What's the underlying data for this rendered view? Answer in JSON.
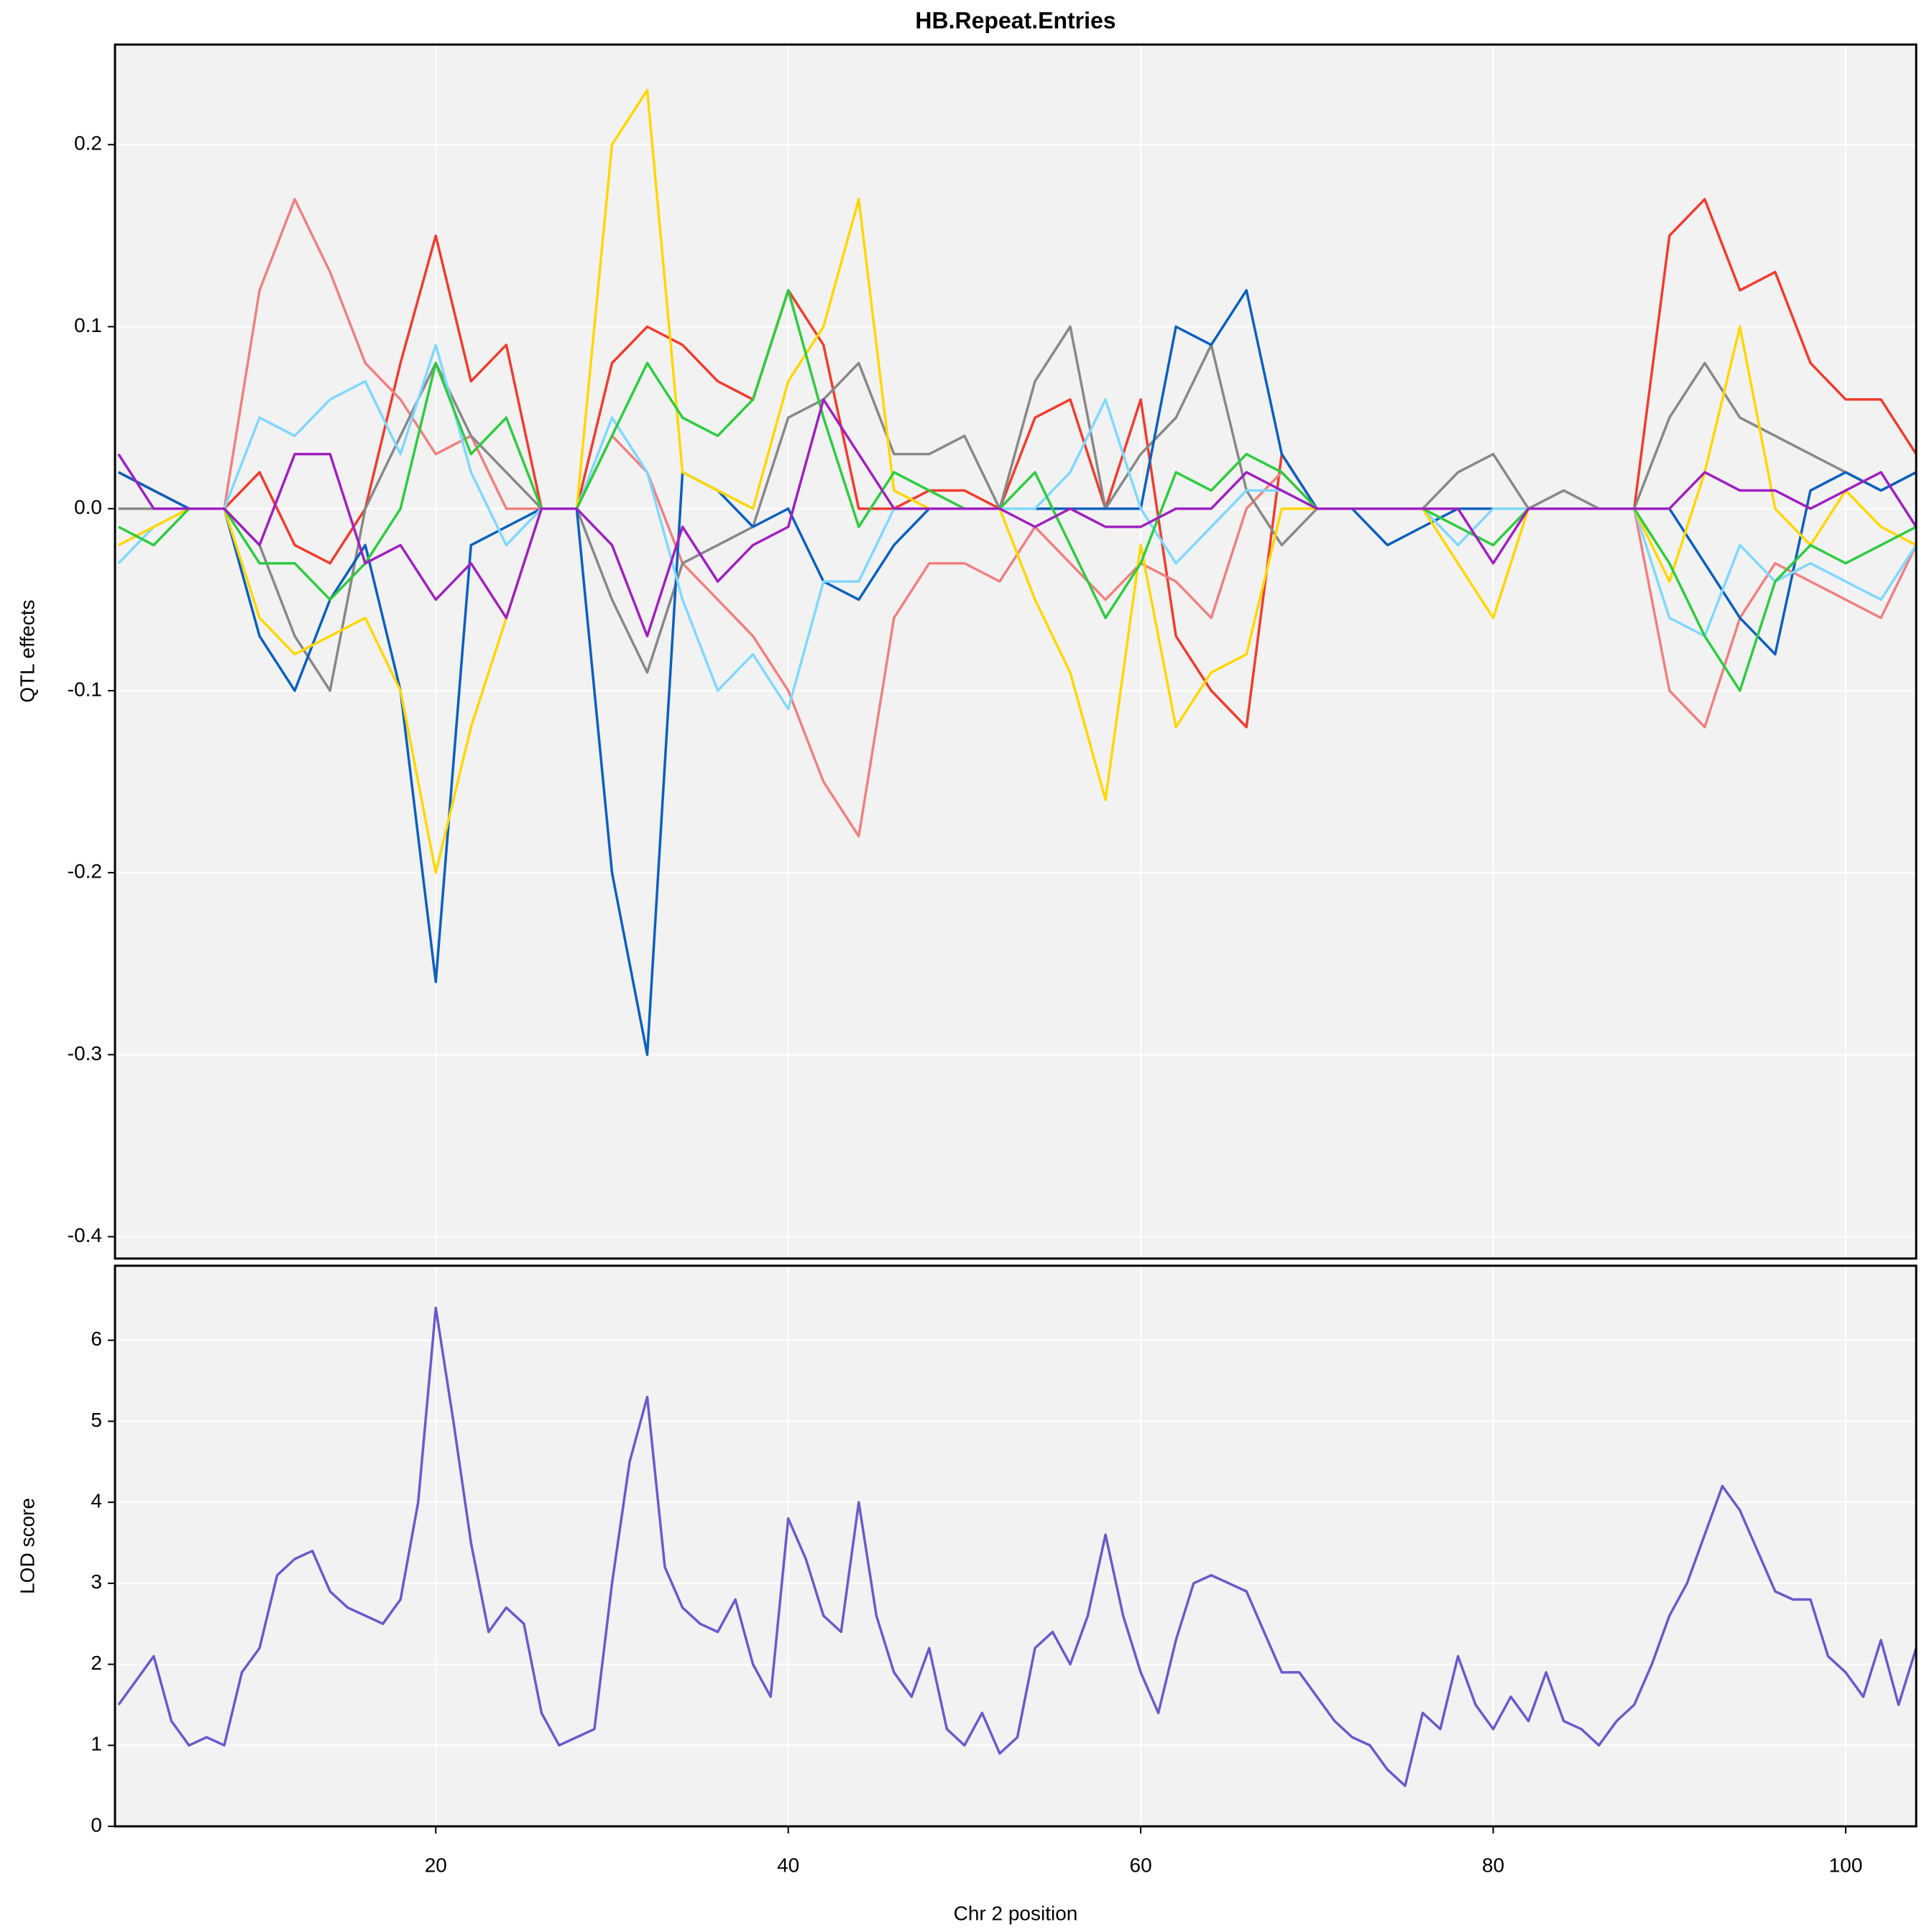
{
  "chart_data": [
    {
      "type": "line",
      "title": "HB.Repeat.Entries",
      "ylabel": "QTL effects",
      "x": [
        2,
        4,
        6,
        8,
        10,
        12,
        14,
        16,
        18,
        20,
        22,
        24,
        26,
        28,
        30,
        32,
        34,
        36,
        38,
        40,
        42,
        44,
        46,
        48,
        50,
        52,
        54,
        56,
        58,
        60,
        62,
        64,
        66,
        68,
        70,
        72,
        74,
        76,
        78,
        80,
        82,
        84,
        86,
        88,
        90,
        92,
        94,
        96,
        98,
        100,
        102,
        104
      ],
      "xlim": [
        1.8,
        104
      ],
      "ylim": [
        -0.412,
        0.255
      ],
      "yticks": [
        -0.4,
        -0.3,
        -0.2,
        -0.1,
        {
          "value": 0,
          "label": "0.0"
        },
        0.1,
        0.2
      ],
      "grid": true,
      "series": [
        {
          "color": "#f03c2e",
          "values": [
            0.02,
            0.01,
            0,
            0,
            0.02,
            -0.02,
            -0.03,
            0,
            0.08,
            0.15,
            0.07,
            0.09,
            0,
            0,
            0.08,
            0.1,
            0.09,
            0.07,
            0.06,
            0.12,
            0.09,
            0,
            0,
            0.01,
            0.01,
            0,
            0.05,
            0.06,
            0,
            0.06,
            -0.07,
            -0.1,
            -0.12,
            0.03,
            0,
            0,
            0,
            0,
            0,
            0,
            0,
            0,
            0,
            0,
            0.15,
            0.17,
            0.12,
            0.13,
            0.08,
            0.06,
            0.06,
            0.03
          ]
        },
        {
          "color": "#f08080",
          "values": [
            0,
            0,
            0,
            0,
            0.12,
            0.17,
            0.13,
            0.08,
            0.06,
            0.03,
            0.04,
            0,
            0,
            0,
            0.04,
            0.02,
            -0.03,
            -0.05,
            -0.07,
            -0.1,
            -0.15,
            -0.18,
            -0.06,
            -0.03,
            -0.03,
            -0.04,
            -0.01,
            -0.03,
            -0.05,
            -0.03,
            -0.04,
            -0.06,
            0,
            0.02,
            0,
            0,
            0,
            0,
            0,
            0,
            0,
            0,
            0,
            0,
            -0.1,
            -0.12,
            -0.06,
            -0.03,
            -0.04,
            -0.05,
            -0.06,
            -0.02
          ]
        },
        {
          "color": "#888888",
          "values": [
            0,
            0,
            0,
            0,
            -0.02,
            -0.07,
            -0.1,
            0,
            0.04,
            0.08,
            0.04,
            0.02,
            0,
            0,
            -0.05,
            -0.09,
            -0.03,
            -0.02,
            -0.01,
            0.05,
            0.06,
            0.08,
            0.03,
            0.03,
            0.04,
            0,
            0.07,
            0.1,
            0,
            0.03,
            0.05,
            0.09,
            0.01,
            -0.02,
            0,
            0,
            0,
            0,
            0.02,
            0.03,
            0,
            0.01,
            0,
            0,
            0.05,
            0.08,
            0.05,
            0.04,
            0.03,
            0.02,
            0.01,
            0.02
          ]
        },
        {
          "color": "#0a60c0",
          "values": [
            0.02,
            0.01,
            0,
            0,
            -0.07,
            -0.1,
            -0.05,
            -0.02,
            -0.1,
            -0.26,
            -0.02,
            -0.01,
            0,
            0,
            -0.2,
            -0.3,
            0.02,
            0.01,
            -0.01,
            0.0,
            -0.04,
            -0.05,
            -0.02,
            0,
            0,
            0,
            0,
            0,
            0,
            0,
            0.1,
            0.09,
            0.12,
            0.03,
            0,
            0,
            -0.02,
            -0.01,
            0,
            0,
            0,
            0,
            0,
            0,
            0,
            -0.03,
            -0.06,
            -0.08,
            0.01,
            0.02,
            0.01,
            0.02
          ]
        },
        {
          "color": "#80d8ff",
          "values": [
            -0.03,
            -0.01,
            0,
            0,
            0.05,
            0.04,
            0.06,
            0.07,
            0.03,
            0.09,
            0.02,
            -0.02,
            0,
            0,
            0.05,
            0.02,
            -0.05,
            -0.1,
            -0.08,
            -0.11,
            -0.04,
            -0.04,
            0,
            0,
            0,
            0,
            0,
            0.02,
            0.06,
            0.0,
            -0.03,
            -0.01,
            0.01,
            0.01,
            0,
            0,
            0,
            0,
            -0.02,
            0,
            0,
            0,
            0,
            0,
            -0.06,
            -0.07,
            -0.02,
            -0.04,
            -0.03,
            -0.04,
            -0.05,
            -0.02
          ]
        },
        {
          "color": "#ffd700",
          "values": [
            -0.02,
            -0.01,
            0,
            0,
            -0.06,
            -0.08,
            -0.07,
            -0.06,
            -0.1,
            -0.2,
            -0.12,
            -0.06,
            0,
            0,
            0.2,
            0.23,
            0.02,
            0.01,
            0.0,
            0.07,
            0.1,
            0.17,
            0.01,
            0,
            0,
            0,
            -0.05,
            -0.09,
            -0.16,
            -0.02,
            -0.12,
            -0.09,
            -0.08,
            0.0,
            0,
            0,
            0,
            0,
            -0.03,
            -0.06,
            0,
            0,
            0,
            0,
            -0.04,
            0.02,
            0.1,
            0.0,
            -0.02,
            0.01,
            -0.01,
            -0.02
          ]
        },
        {
          "color": "#2ecc40",
          "values": [
            -0.01,
            -0.02,
            0,
            0,
            -0.03,
            -0.03,
            -0.05,
            -0.03,
            0.0,
            0.08,
            0.03,
            0.05,
            0,
            0,
            0.04,
            0.08,
            0.05,
            0.04,
            0.06,
            0.12,
            0.05,
            -0.01,
            0.02,
            0.01,
            0,
            0,
            0.02,
            -0.02,
            -0.06,
            -0.03,
            0.02,
            0.01,
            0.03,
            0.02,
            0,
            0,
            0,
            0,
            -0.01,
            -0.02,
            0,
            0,
            0,
            0,
            -0.03,
            -0.07,
            -0.1,
            -0.04,
            -0.02,
            -0.03,
            -0.02,
            -0.01
          ]
        },
        {
          "color": "#a020c0",
          "values": [
            0.03,
            0,
            0,
            0,
            -0.02,
            0.03,
            0.03,
            -0.03,
            -0.02,
            -0.05,
            -0.03,
            -0.06,
            0,
            0,
            -0.02,
            -0.07,
            -0.01,
            -0.04,
            -0.02,
            -0.01,
            0.06,
            0.03,
            0,
            0,
            0,
            0,
            -0.01,
            0,
            -0.01,
            -0.01,
            0.0,
            0.0,
            0.02,
            0.01,
            0,
            0,
            0,
            0,
            0,
            -0.03,
            0,
            0,
            0,
            0,
            0.0,
            0.02,
            0.01,
            0.01,
            0.0,
            0.01,
            0.02,
            -0.01
          ]
        }
      ]
    },
    {
      "type": "line",
      "ylabel": "LOD score",
      "xlabel": "Chr 2 position",
      "x": [
        2,
        3,
        4,
        5,
        6,
        7,
        8,
        9,
        10,
        11,
        12,
        13,
        14,
        15,
        16,
        17,
        18,
        19,
        20,
        21,
        22,
        23,
        24,
        25,
        26,
        27,
        28,
        29,
        30,
        31,
        32,
        33,
        34,
        35,
        36,
        37,
        38,
        39,
        40,
        41,
        42,
        43,
        44,
        45,
        46,
        47,
        48,
        49,
        50,
        51,
        52,
        53,
        54,
        55,
        56,
        57,
        58,
        59,
        60,
        61,
        62,
        63,
        64,
        65,
        66,
        67,
        68,
        69,
        70,
        71,
        72,
        73,
        74,
        75,
        76,
        77,
        78,
        79,
        80,
        81,
        82,
        83,
        84,
        85,
        86,
        87,
        88,
        89,
        90,
        91,
        92,
        93,
        94,
        95,
        96,
        97,
        98,
        99,
        100,
        101,
        102,
        103,
        104
      ],
      "xlim": [
        1.8,
        104
      ],
      "ylim": [
        0,
        6.92
      ],
      "xticks": [
        20,
        40,
        60,
        80,
        100
      ],
      "yticks": [
        0,
        1,
        2,
        3,
        4,
        5,
        6
      ],
      "grid": true,
      "series": [
        {
          "color": "#6a5acd",
          "values": [
            1.5,
            1.8,
            2.1,
            1.3,
            1.0,
            1.1,
            1.0,
            1.9,
            2.2,
            3.1,
            3.3,
            3.4,
            2.9,
            2.7,
            2.6,
            2.5,
            2.8,
            4.0,
            6.4,
            5.0,
            3.5,
            2.4,
            2.7,
            2.5,
            1.4,
            1.0,
            1.1,
            1.2,
            3.0,
            4.5,
            5.3,
            3.2,
            2.7,
            2.5,
            2.4,
            2.8,
            2.0,
            1.6,
            3.8,
            3.3,
            2.6,
            2.4,
            4.0,
            2.6,
            1.9,
            1.6,
            2.2,
            1.2,
            1.0,
            1.4,
            0.9,
            1.1,
            2.2,
            2.4,
            2.0,
            2.6,
            3.6,
            2.6,
            1.9,
            1.4,
            2.3,
            3.0,
            3.1,
            3.0,
            2.9,
            2.4,
            1.9,
            1.9,
            1.6,
            1.3,
            1.1,
            1.0,
            0.7,
            0.5,
            1.4,
            1.2,
            2.1,
            1.5,
            1.2,
            1.6,
            1.3,
            1.9,
            1.3,
            1.2,
            1.0,
            1.3,
            1.5,
            2.0,
            2.6,
            3.0,
            3.6,
            4.2,
            3.9,
            3.4,
            2.9,
            2.8,
            2.8,
            2.1,
            1.9,
            1.6,
            2.3,
            1.5,
            2.2
          ]
        }
      ]
    }
  ]
}
